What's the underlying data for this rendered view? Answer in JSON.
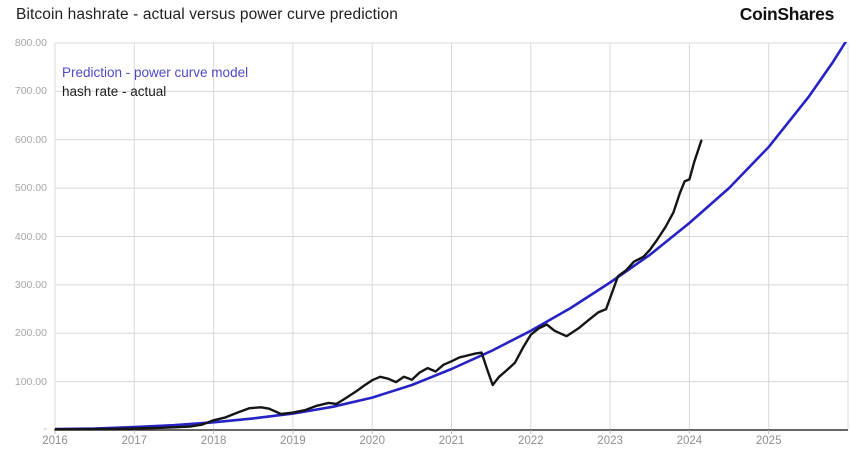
{
  "header": {
    "title": "Bitcoin hashrate - actual versus power curve prediction",
    "brand": "CoinShares"
  },
  "chart_data": {
    "type": "line",
    "title": "Bitcoin hashrate - actual versus power curve prediction",
    "xlabel": "",
    "ylabel": "",
    "xlim": [
      2016,
      2026
    ],
    "ylim": [
      0,
      800
    ],
    "grid": true,
    "legend_position": "top-left",
    "x_ticks": [
      2016,
      2017,
      2018,
      2019,
      2020,
      2021,
      2022,
      2023,
      2024,
      2025
    ],
    "x_tick_labels": [
      "2016",
      "2017",
      "2018",
      "2019",
      "2020",
      "2021",
      "2022",
      "2023",
      "2024",
      "2025"
    ],
    "y_ticks": [
      100,
      200,
      300,
      400,
      500,
      600,
      700,
      800
    ],
    "y_tick_labels": [
      "100.00",
      "200.00",
      "300.00",
      "400.00",
      "500.00",
      "600.00",
      "700.00",
      "800.00"
    ],
    "zero_label": "-",
    "colors": {
      "prediction_line": "#2722c3",
      "actual_line": "#151515",
      "legend_prediction_text": "#5049c5",
      "legend_actual_text": "#1c1c1c",
      "gridline": "#d8d8d8",
      "axis_line": "#333333",
      "tick_text": "#a6a6a6"
    },
    "series": [
      {
        "name": "Prediction - power curve model",
        "color": "#2722c3",
        "x": [
          2016,
          2016.5,
          2017,
          2017.5,
          2018,
          2018.5,
          2019,
          2019.5,
          2020,
          2020.5,
          2021,
          2021.5,
          2022,
          2022.5,
          2023,
          2023.5,
          2024,
          2024.5,
          2025,
          2025.5,
          2025.8,
          2026
        ],
        "y": [
          2,
          3,
          6,
          10,
          16,
          24,
          34,
          48,
          67,
          93,
          126,
          163,
          205,
          252,
          305,
          362,
          428,
          500,
          585,
          688,
          758,
          810
        ]
      },
      {
        "name": "hash rate - actual",
        "color": "#151515",
        "x": [
          2016,
          2016.25,
          2016.5,
          2016.75,
          2017,
          2017.25,
          2017.5,
          2017.7,
          2017.85,
          2018,
          2018.15,
          2018.3,
          2018.45,
          2018.6,
          2018.7,
          2018.85,
          2019,
          2019.15,
          2019.3,
          2019.45,
          2019.55,
          2019.65,
          2019.8,
          2019.9,
          2020,
          2020.1,
          2020.2,
          2020.3,
          2020.4,
          2020.5,
          2020.6,
          2020.7,
          2020.8,
          2020.9,
          2021,
          2021.1,
          2021.2,
          2021.3,
          2021.38,
          2021.45,
          2021.52,
          2021.6,
          2021.7,
          2021.8,
          2021.9,
          2022,
          2022.1,
          2022.2,
          2022.3,
          2022.45,
          2022.6,
          2022.75,
          2022.85,
          2022.95,
          2023.1,
          2023.2,
          2023.3,
          2023.42,
          2023.5,
          2023.6,
          2023.7,
          2023.8,
          2023.88,
          2023.94,
          2024.0,
          2024.06,
          2024.15
        ],
        "y": [
          1.5,
          1.6,
          1.8,
          2.2,
          3,
          4,
          5.5,
          7,
          11,
          20,
          26,
          36,
          45,
          47,
          44,
          33,
          36,
          41,
          50,
          56,
          54,
          64,
          80,
          92,
          103,
          110,
          106,
          99,
          110,
          104,
          119,
          128,
          121,
          135,
          142,
          150,
          154,
          158,
          160,
          125,
          93,
          110,
          124,
          139,
          170,
          197,
          210,
          218,
          205,
          194,
          210,
          230,
          243,
          250,
          318,
          330,
          348,
          358,
          372,
          395,
          420,
          450,
          490,
          514,
          518,
          554,
          598
        ]
      }
    ]
  },
  "legend": {
    "items": [
      {
        "label": "Prediction - power curve model",
        "color": "#5049c5"
      },
      {
        "label": "hash rate - actual",
        "color": "#1c1c1c"
      }
    ]
  }
}
